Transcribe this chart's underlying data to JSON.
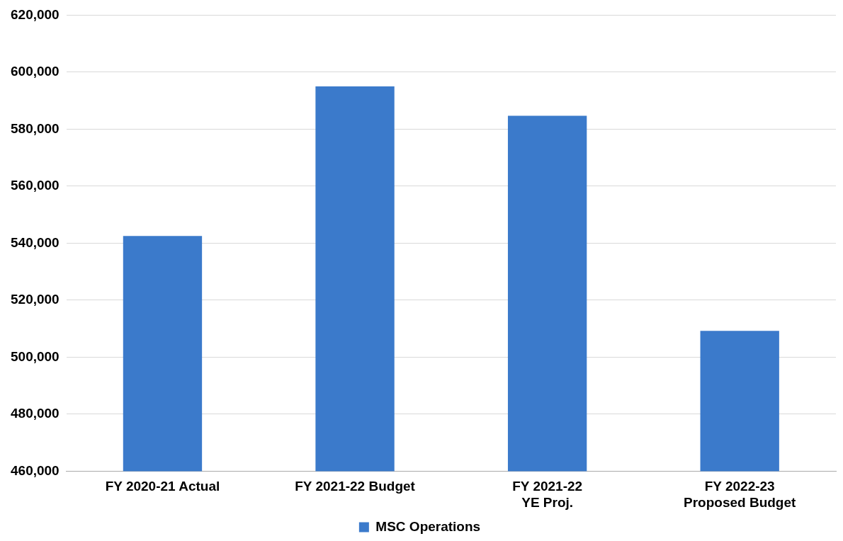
{
  "chart_data": {
    "type": "bar",
    "categories": [
      "FY 2020-21 Actual",
      "FY 2021-22 Budget",
      "FY 2021-22\nYE Proj.",
      "FY 2022-23\nProposed Budget"
    ],
    "series": [
      {
        "name": "MSC Operations",
        "color": "#3b7acb",
        "values": [
          542500,
          595000,
          584700,
          509200
        ]
      }
    ],
    "ylim": [
      460000,
      620000
    ],
    "yticks": [
      {
        "value": 460000,
        "label": "460,000"
      },
      {
        "value": 480000,
        "label": "480,000"
      },
      {
        "value": 500000,
        "label": "500,000"
      },
      {
        "value": 520000,
        "label": "520,000"
      },
      {
        "value": 540000,
        "label": "540,000"
      },
      {
        "value": 560000,
        "label": "560,000"
      },
      {
        "value": 580000,
        "label": "580,000"
      },
      {
        "value": 600000,
        "label": "600,000"
      },
      {
        "value": 620000,
        "label": "620,000"
      }
    ],
    "grid": "y",
    "legend": "bottom"
  }
}
